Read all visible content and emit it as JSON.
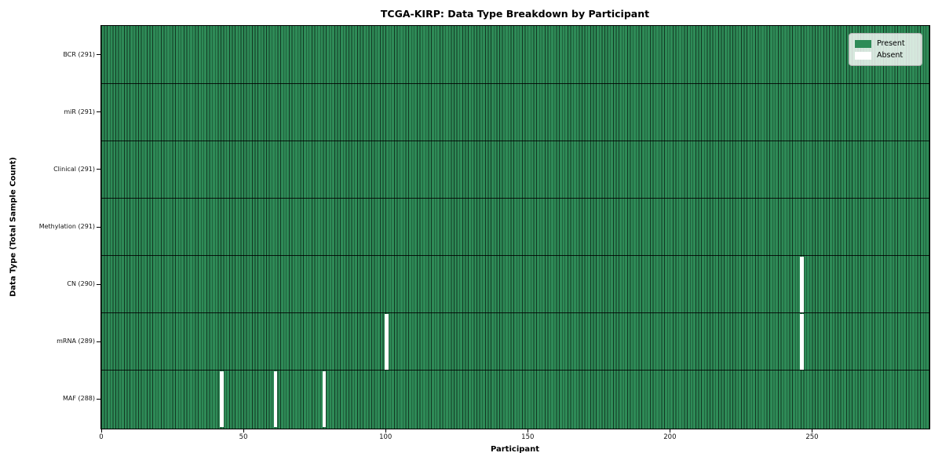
{
  "chart_data": {
    "type": "heatmap",
    "title": "TCGA-KIRP: Data Type Breakdown by Participant",
    "xlabel": "Participant",
    "ylabel": "Data Type (Total Sample Count)",
    "x_ticks": [
      0,
      50,
      100,
      150,
      200,
      250
    ],
    "x_range": [
      0,
      291
    ],
    "n_participants": 291,
    "rows": [
      {
        "name": "bcr",
        "label": "BCR (291)",
        "total": 291,
        "absent_participants": []
      },
      {
        "name": "mir",
        "label": "miR (291)",
        "total": 291,
        "absent_participants": []
      },
      {
        "name": "clinical",
        "label": "Clinical (291)",
        "total": 291,
        "absent_participants": []
      },
      {
        "name": "methylation",
        "label": "Methylation (291)",
        "total": 291,
        "absent_participants": []
      },
      {
        "name": "cn",
        "label": "CN (290)",
        "total": 290,
        "absent_participants": [
          246
        ]
      },
      {
        "name": "mrna",
        "label": "mRNA (289)",
        "total": 289,
        "absent_participants": [
          100,
          246
        ]
      },
      {
        "name": "maf",
        "label": "MAF (288)",
        "total": 288,
        "absent_participants": [
          42,
          61,
          78
        ]
      }
    ],
    "legend": [
      {
        "label": "Present",
        "color": "#2e8b57"
      },
      {
        "label": "Absent",
        "color": "#ffffff"
      }
    ],
    "legend_position": "upper right",
    "colors": {
      "present": "#2e8b57",
      "absent": "#ffffff",
      "cell_edge": "#000000"
    },
    "grid": false
  }
}
